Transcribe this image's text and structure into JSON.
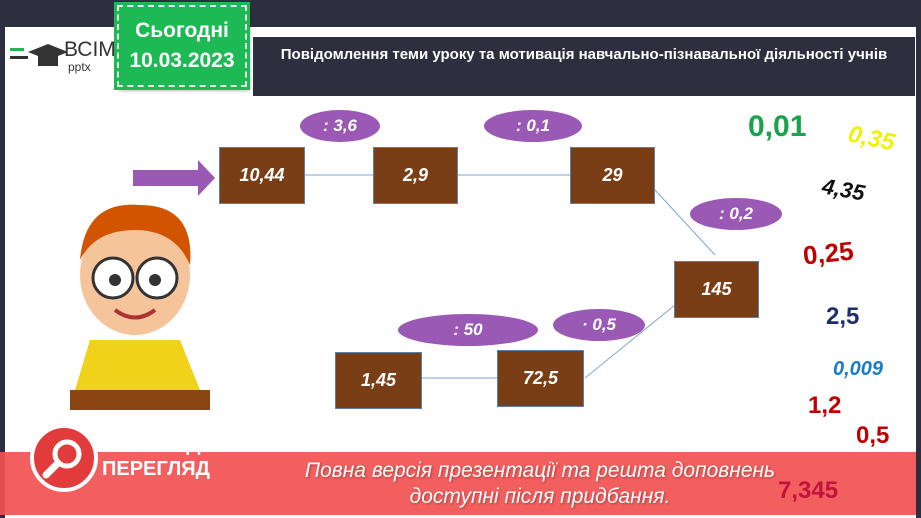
{
  "logo": {
    "brand": "ВСІМ",
    "sub": "pptx"
  },
  "date": {
    "label": "Сьогодні",
    "value": "10.03.2023"
  },
  "title": "Повідомлення теми уроку та мотивація навчально-пізнавальної діяльності учнів",
  "chain": {
    "boxes": [
      "10,44",
      "2,9",
      "29",
      "145",
      "72,5",
      "1,45"
    ],
    "operations": [
      ": 3,6",
      ": 0,1",
      ": 0,2",
      "· 0,5",
      ": 50"
    ]
  },
  "answers": [
    {
      "value": "0,01",
      "color": "#1aa34a"
    },
    {
      "value": "0,35",
      "color": "#f2f200"
    },
    {
      "value": "4,35",
      "color": "#111111"
    },
    {
      "value": "0,25",
      "color": "#c00000"
    },
    {
      "value": "2,5",
      "color": "#1f2f6e"
    },
    {
      "value": "0,009",
      "color": "#1a7cc9"
    },
    {
      "value": "1,2",
      "color": "#c00000"
    },
    {
      "value": "0,5",
      "color": "#c00000"
    },
    {
      "value": "7,345",
      "color": "#c0143c"
    }
  ],
  "banner": {
    "label_line1": "ПОПЕРЕДНІЙ",
    "label_line2": "ПЕРЕГЛЯД",
    "text": "Повна версія презентації та решта доповнень доступні після придбання."
  }
}
